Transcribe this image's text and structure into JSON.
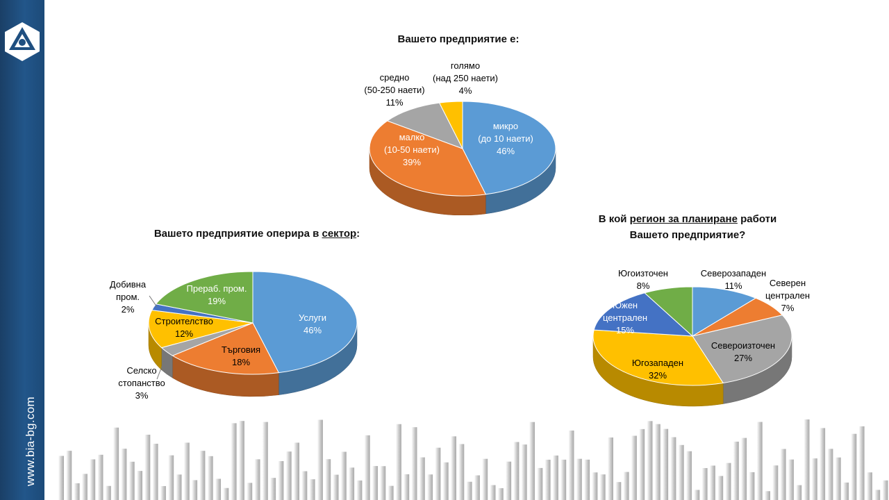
{
  "site_url": "www.bia-bg.com",
  "chart_data": [
    {
      "type": "pie",
      "title": "Вашето предприятие  е:",
      "categories": [
        "микро\n(до 10 наети)",
        "малко\n(10-50 наети)",
        "средно\n(50-250 наети)",
        "голямо\n(над 250 наети)"
      ],
      "values": [
        46,
        39,
        11,
        4
      ],
      "labels": [
        "46%",
        "39%",
        "11%",
        "4%"
      ],
      "colors": [
        "#5b9bd5",
        "#ed7d31",
        "#a5a5a5",
        "#ffc000"
      ]
    },
    {
      "type": "pie",
      "title": "Вашето предприятие оперира в сектор:",
      "title_parts": [
        "Вашето предприятие оперира в ",
        "сектор",
        ":"
      ],
      "categories": [
        "Услуги",
        "Търговия",
        "Селско\nстопанство",
        "Строителство",
        "Добивна\nпром.",
        "Прераб. пром."
      ],
      "values": [
        46,
        18,
        3,
        12,
        2,
        19
      ],
      "labels": [
        "46%",
        "18%",
        "3%",
        "12%",
        "2%",
        "19%"
      ],
      "colors": [
        "#5b9bd5",
        "#ed7d31",
        "#a5a5a5",
        "#ffc000",
        "#4472c4",
        "#70ad47"
      ]
    },
    {
      "type": "pie",
      "title": "В кой регион за планиране работи Вашето предприятие?",
      "title_parts": [
        "В кой ",
        "регион за планиране",
        " работи",
        "Вашето предприятие?"
      ],
      "categories": [
        "Северозападен",
        "Северен\nцентрален",
        "Североизточен",
        "Югозападен",
        "Южен\nцентрален",
        "Югоизточен"
      ],
      "values": [
        11,
        7,
        27,
        32,
        15,
        8
      ],
      "labels": [
        "11%",
        "7%",
        "27%",
        "32%",
        "15%",
        "8%"
      ],
      "colors": [
        "#5b9bd5",
        "#ed7d31",
        "#a5a5a5",
        "#ffc000",
        "#4472c4",
        "#70ad47"
      ]
    }
  ]
}
